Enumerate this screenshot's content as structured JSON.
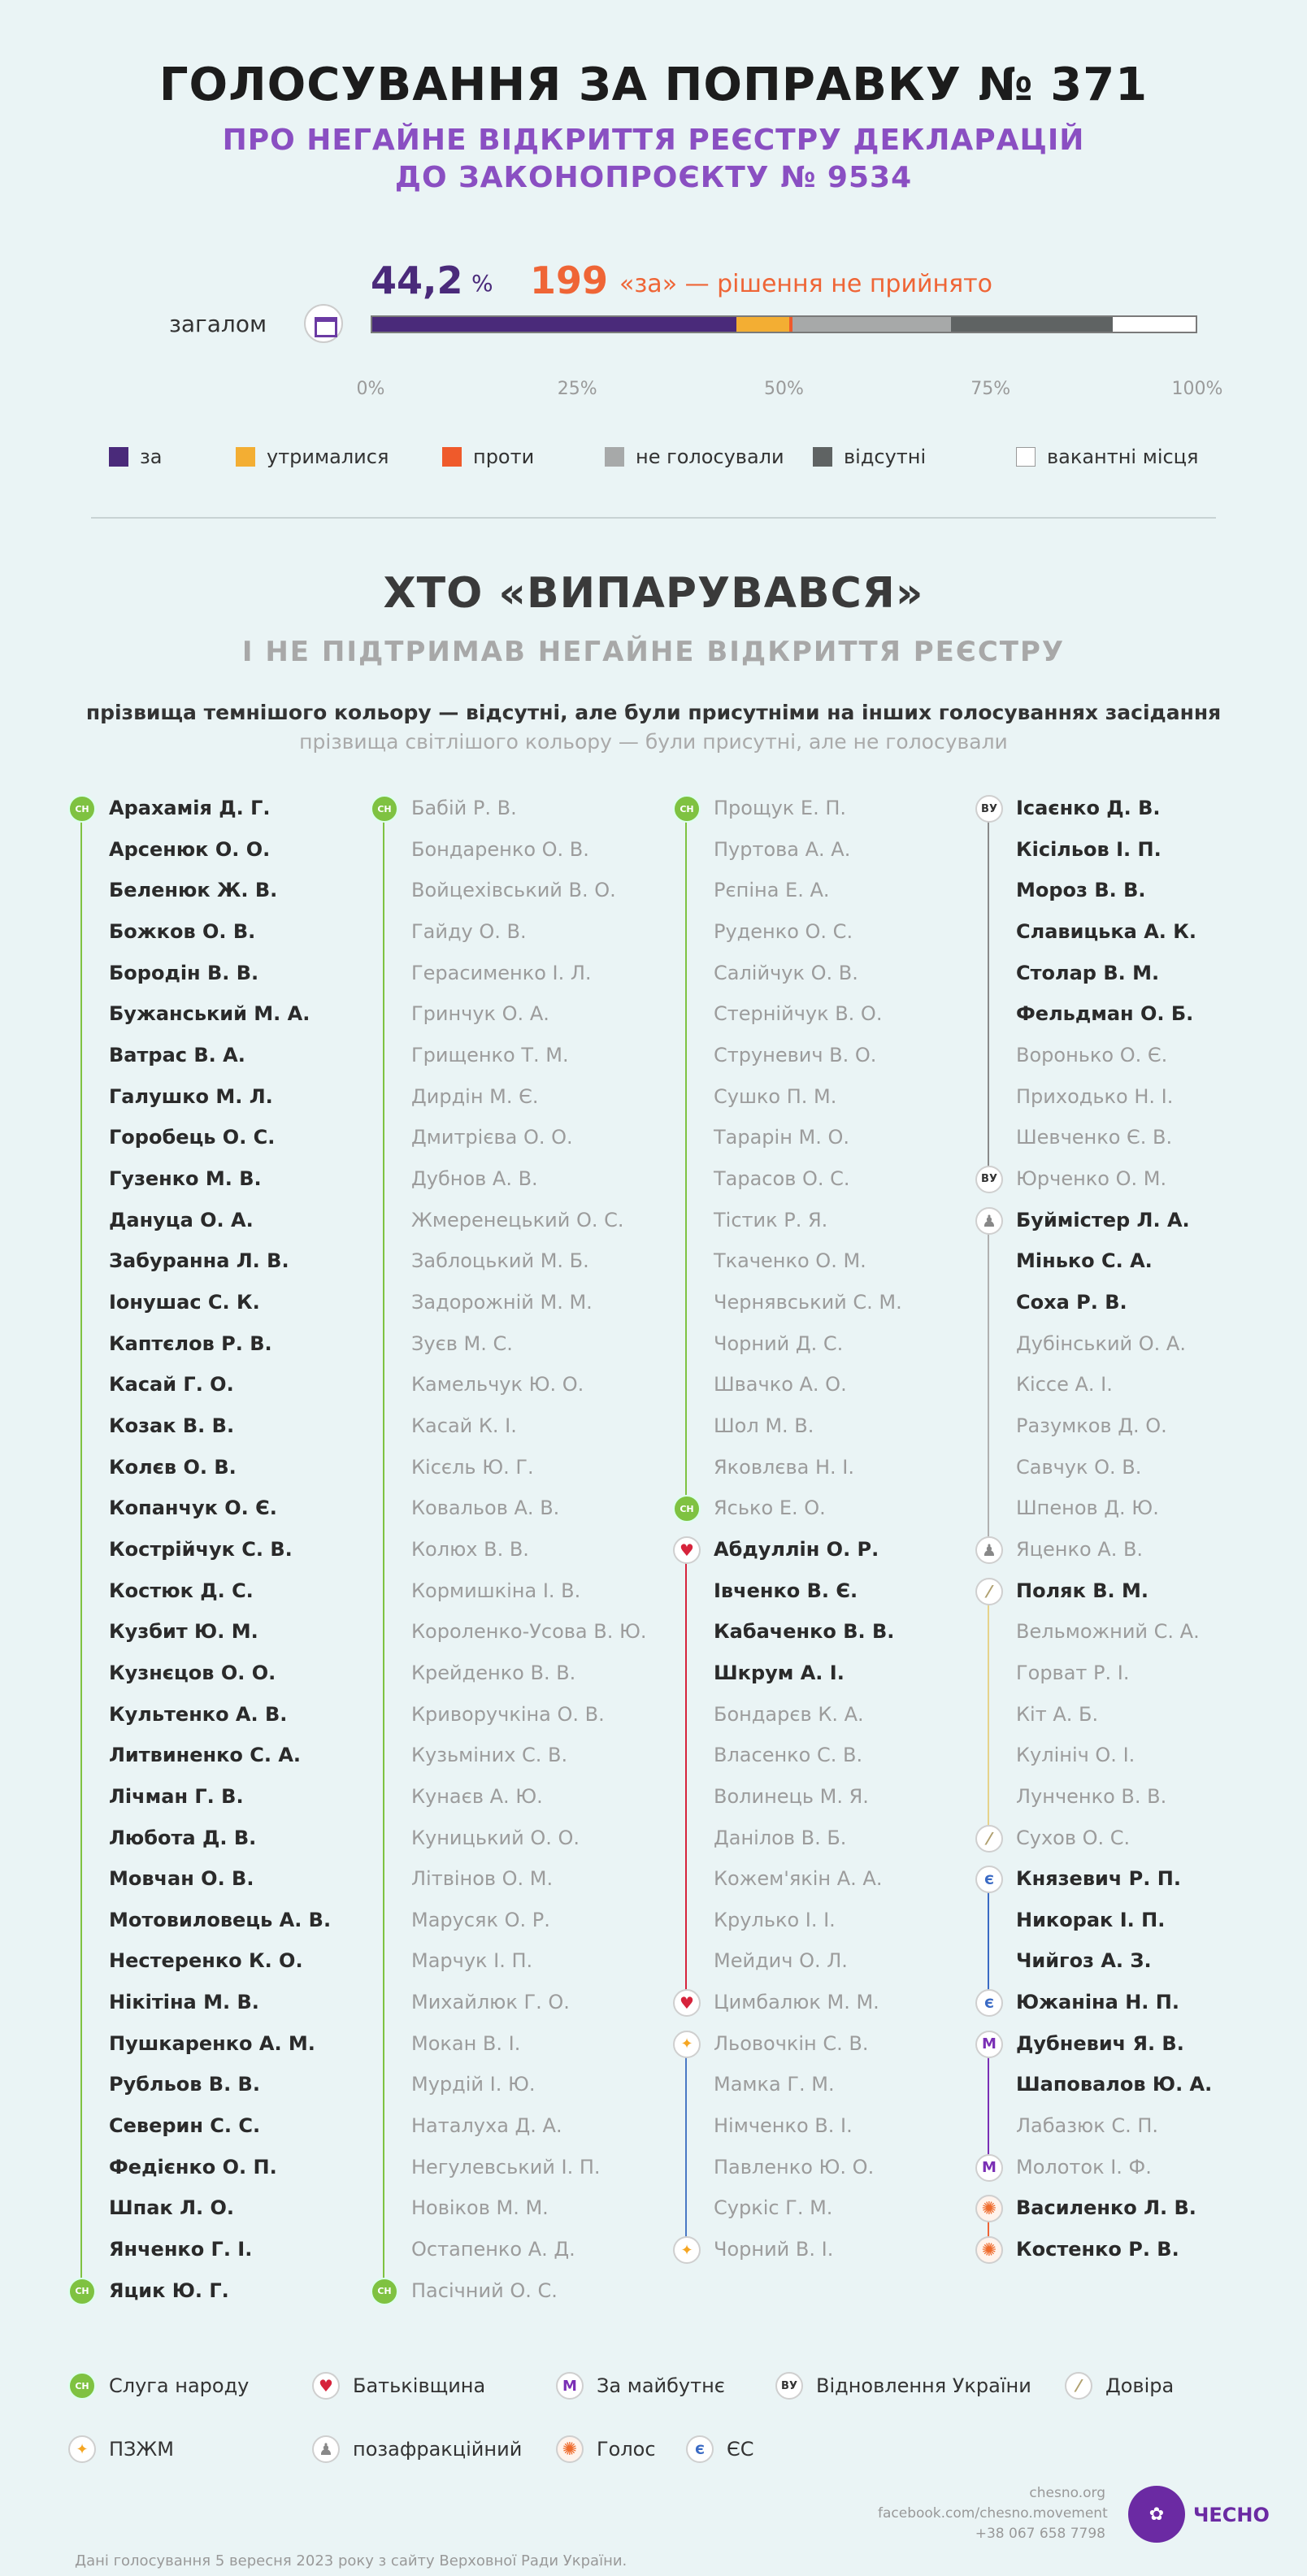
{
  "header": {
    "title": "ГОЛОСУВАННЯ ЗА ПОПРАВКУ № 371",
    "subtitle_line1": "ПРО НЕГАЙНЕ ВІДКРИТТЯ РЕЄСТРУ ДЕКЛАРАЦІЙ",
    "subtitle_line2": "ДО ЗАКОНОПРОЄКТУ № 9534"
  },
  "summary": {
    "percent": "44,2",
    "percent_sign": "%",
    "count": "199",
    "count_text": "«за» — рішення не прийнято",
    "row_label": "загалом"
  },
  "colors": {
    "za": "#4a2a7a",
    "utrym": "#f3ae33",
    "proty": "#ef5a2b",
    "ne_golos": "#a7a9a9",
    "vidsutni": "#5f6363",
    "vakantni": "#ffffff",
    "accent_purple": "#8a4fc2",
    "accent_orange": "#ef6536",
    "sluga_line": "#7fc241",
    "batk_line": "#d6233b",
    "pzzm_line": "#4a78c4",
    "vu_line": "#8a8a8a",
    "poza_line": "#b0b0b0",
    "dov_line": "#e6d28a",
    "es_line": "#3a6ac4",
    "zm_line": "#7a2fb5"
  },
  "chart_data": {
    "type": "bar",
    "orientation": "horizontal-stacked",
    "categories": [
      "загалом"
    ],
    "series": [
      {
        "name": "за",
        "values": [
          44.2
        ]
      },
      {
        "name": "утрималися",
        "values": [
          6.4
        ]
      },
      {
        "name": "проти",
        "values": [
          0.4
        ]
      },
      {
        "name": "не голосували",
        "values": [
          19.3
        ]
      },
      {
        "name": "відсутні",
        "values": [
          19.6
        ]
      },
      {
        "name": "вакантні місця",
        "values": [
          10.1
        ]
      }
    ],
    "xlim": [
      0,
      100
    ],
    "x_ticks": [
      "0%",
      "25%",
      "50%",
      "75%",
      "100%"
    ],
    "legend_placement": "bottom"
  },
  "section": {
    "title": "ХТО «ВИПАРУВАВСЯ»",
    "subtitle": "І НЕ ПІДТРИМАВ НЕГАЙНЕ ВІДКРИТТЯ РЕЄСТРУ",
    "note_dark": "прізвища темнішого кольору — відсутні, але були присутніми на інших голосуваннях засідання",
    "note_light": "прізвища світлішого кольору — були присутні, але не голосували"
  },
  "columns": [
    [
      {
        "n": "Арахамія Д. Г.",
        "s": "dark",
        "p": "sn",
        "b": true
      },
      {
        "n": "Арсенюк О. О.",
        "s": "dark",
        "p": "sn"
      },
      {
        "n": "Беленюк Ж. В.",
        "s": "dark",
        "p": "sn"
      },
      {
        "n": "Божков О. В.",
        "s": "dark",
        "p": "sn"
      },
      {
        "n": "Бородін В. В.",
        "s": "dark",
        "p": "sn"
      },
      {
        "n": "Бужанський М. А.",
        "s": "dark",
        "p": "sn"
      },
      {
        "n": "Ватрас В. А.",
        "s": "dark",
        "p": "sn"
      },
      {
        "n": "Галушко М. Л.",
        "s": "dark",
        "p": "sn"
      },
      {
        "n": "Горобець О. С.",
        "s": "dark",
        "p": "sn"
      },
      {
        "n": "Гузенко М. В.",
        "s": "dark",
        "p": "sn"
      },
      {
        "n": "Дануца О. А.",
        "s": "dark",
        "p": "sn"
      },
      {
        "n": "Забуранна Л. В.",
        "s": "dark",
        "p": "sn"
      },
      {
        "n": "Іонушас С. К.",
        "s": "dark",
        "p": "sn"
      },
      {
        "n": "Каптєлов Р. В.",
        "s": "dark",
        "p": "sn"
      },
      {
        "n": "Касай Г. О.",
        "s": "dark",
        "p": "sn"
      },
      {
        "n": "Козак В. В.",
        "s": "dark",
        "p": "sn"
      },
      {
        "n": "Колєв О. В.",
        "s": "dark",
        "p": "sn"
      },
      {
        "n": "Копанчук О. Є.",
        "s": "dark",
        "p": "sn"
      },
      {
        "n": "Кострійчук С. В.",
        "s": "dark",
        "p": "sn"
      },
      {
        "n": "Костюк Д. С.",
        "s": "dark",
        "p": "sn"
      },
      {
        "n": "Кузбит Ю. М.",
        "s": "dark",
        "p": "sn"
      },
      {
        "n": "Кузнєцов О. О.",
        "s": "dark",
        "p": "sn"
      },
      {
        "n": "Культенко А. В.",
        "s": "dark",
        "p": "sn"
      },
      {
        "n": "Литвиненко С. А.",
        "s": "dark",
        "p": "sn"
      },
      {
        "n": "Лічман Г. В.",
        "s": "dark",
        "p": "sn"
      },
      {
        "n": "Любота Д. В.",
        "s": "dark",
        "p": "sn"
      },
      {
        "n": "Мовчан О. В.",
        "s": "dark",
        "p": "sn"
      },
      {
        "n": "Мотовиловець А. В.",
        "s": "dark",
        "p": "sn"
      },
      {
        "n": "Нестеренко К. О.",
        "s": "dark",
        "p": "sn"
      },
      {
        "n": "Нікітіна М. В.",
        "s": "dark",
        "p": "sn"
      },
      {
        "n": "Пушкаренко А. М.",
        "s": "dark",
        "p": "sn"
      },
      {
        "n": "Рубльов В. В.",
        "s": "dark",
        "p": "sn"
      },
      {
        "n": "Северин С. С.",
        "s": "dark",
        "p": "sn"
      },
      {
        "n": "Федієнко О. П.",
        "s": "dark",
        "p": "sn"
      },
      {
        "n": "Шпак Л. О.",
        "s": "dark",
        "p": "sn"
      },
      {
        "n": "Янченко Г. І.",
        "s": "dark",
        "p": "sn"
      },
      {
        "n": "Яцик Ю. Г.",
        "s": "dark",
        "p": "sn",
        "b": true
      }
    ],
    [
      {
        "n": "Бабій Р. В.",
        "s": "light",
        "p": "sn",
        "b": true
      },
      {
        "n": "Бондаренко О. В.",
        "s": "light",
        "p": "sn"
      },
      {
        "n": "Войцехівський В. О.",
        "s": "light",
        "p": "sn"
      },
      {
        "n": "Гайду О. В.",
        "s": "light",
        "p": "sn"
      },
      {
        "n": "Герасименко І. Л.",
        "s": "light",
        "p": "sn"
      },
      {
        "n": "Гринчук О. А.",
        "s": "light",
        "p": "sn"
      },
      {
        "n": "Грищенко Т. М.",
        "s": "light",
        "p": "sn"
      },
      {
        "n": "Дирдін М. Є.",
        "s": "light",
        "p": "sn"
      },
      {
        "n": "Дмитрієва О. О.",
        "s": "light",
        "p": "sn"
      },
      {
        "n": "Дубнов А. В.",
        "s": "light",
        "p": "sn"
      },
      {
        "n": "Жмеренецький О. С.",
        "s": "light",
        "p": "sn"
      },
      {
        "n": "Заблоцький М. Б.",
        "s": "light",
        "p": "sn"
      },
      {
        "n": "Задорожній М. М.",
        "s": "light",
        "p": "sn"
      },
      {
        "n": "Зуєв М. С.",
        "s": "light",
        "p": "sn"
      },
      {
        "n": "Камельчук Ю. О.",
        "s": "light",
        "p": "sn"
      },
      {
        "n": "Касай К. І.",
        "s": "light",
        "p": "sn"
      },
      {
        "n": "Кісєль Ю. Г.",
        "s": "light",
        "p": "sn"
      },
      {
        "n": "Ковальов А. В.",
        "s": "light",
        "p": "sn"
      },
      {
        "n": "Колюх В. В.",
        "s": "light",
        "p": "sn"
      },
      {
        "n": "Кормишкіна І. В.",
        "s": "light",
        "p": "sn"
      },
      {
        "n": "Короленко-Усова В. Ю.",
        "s": "light",
        "p": "sn"
      },
      {
        "n": "Крейденко В. В.",
        "s": "light",
        "p": "sn"
      },
      {
        "n": "Криворучкіна О. В.",
        "s": "light",
        "p": "sn"
      },
      {
        "n": "Кузьміних С. В.",
        "s": "light",
        "p": "sn"
      },
      {
        "n": "Кунаєв А. Ю.",
        "s": "light",
        "p": "sn"
      },
      {
        "n": "Куницький О. О.",
        "s": "light",
        "p": "sn"
      },
      {
        "n": "Літвінов О. М.",
        "s": "light",
        "p": "sn"
      },
      {
        "n": "Марусяк О. Р.",
        "s": "light",
        "p": "sn"
      },
      {
        "n": "Марчук І. П.",
        "s": "light",
        "p": "sn"
      },
      {
        "n": "Михайлюк Г. О.",
        "s": "light",
        "p": "sn"
      },
      {
        "n": "Мокан В. І.",
        "s": "light",
        "p": "sn"
      },
      {
        "n": "Мурдій І. Ю.",
        "s": "light",
        "p": "sn"
      },
      {
        "n": "Наталуха Д. А.",
        "s": "light",
        "p": "sn"
      },
      {
        "n": "Негулевський І. П.",
        "s": "light",
        "p": "sn"
      },
      {
        "n": "Новіков М. М.",
        "s": "light",
        "p": "sn"
      },
      {
        "n": "Остапенко А. Д.",
        "s": "light",
        "p": "sn"
      },
      {
        "n": "Пасічний О. С.",
        "s": "light",
        "p": "sn",
        "b": true
      }
    ],
    [
      {
        "n": "Прощук Е. П.",
        "s": "light",
        "p": "sn",
        "b": true
      },
      {
        "n": "Пуртова А. А.",
        "s": "light",
        "p": "sn"
      },
      {
        "n": "Рєпіна Е. А.",
        "s": "light",
        "p": "sn"
      },
      {
        "n": "Руденко О. С.",
        "s": "light",
        "p": "sn"
      },
      {
        "n": "Салійчук О. В.",
        "s": "light",
        "p": "sn"
      },
      {
        "n": "Стернійчук В. О.",
        "s": "light",
        "p": "sn"
      },
      {
        "n": "Струневич В. О.",
        "s": "light",
        "p": "sn"
      },
      {
        "n": "Сушко П. М.",
        "s": "light",
        "p": "sn"
      },
      {
        "n": "Тарарін М. О.",
        "s": "light",
        "p": "sn"
      },
      {
        "n": "Тарасов О. С.",
        "s": "light",
        "p": "sn"
      },
      {
        "n": "Тістик Р. Я.",
        "s": "light",
        "p": "sn"
      },
      {
        "n": "Ткаченко О. М.",
        "s": "light",
        "p": "sn"
      },
      {
        "n": "Чернявський С. М.",
        "s": "light",
        "p": "sn"
      },
      {
        "n": "Чорний Д. С.",
        "s": "light",
        "p": "sn"
      },
      {
        "n": "Швачко А. О.",
        "s": "light",
        "p": "sn"
      },
      {
        "n": "Шол М. В.",
        "s": "light",
        "p": "sn"
      },
      {
        "n": "Яковлєва Н. І.",
        "s": "light",
        "p": "sn"
      },
      {
        "n": "Ясько Е. О.",
        "s": "light",
        "p": "sn",
        "b": true
      },
      {
        "n": "Абдуллін О. Р.",
        "s": "dark",
        "p": "bat",
        "b": true
      },
      {
        "n": "Івченко В. Є.",
        "s": "dark",
        "p": "bat"
      },
      {
        "n": "Кабаченко В. В.",
        "s": "dark",
        "p": "bat"
      },
      {
        "n": "Шкрум А. І.",
        "s": "dark",
        "p": "bat"
      },
      {
        "n": "Бондарєв К. А.",
        "s": "light",
        "p": "bat"
      },
      {
        "n": "Власенко С. В.",
        "s": "light",
        "p": "bat"
      },
      {
        "n": "Волинець М. Я.",
        "s": "light",
        "p": "bat"
      },
      {
        "n": "Данілов В. Б.",
        "s": "light",
        "p": "bat"
      },
      {
        "n": "Кожем'якін А. А.",
        "s": "light",
        "p": "bat"
      },
      {
        "n": "Крулько І. І.",
        "s": "light",
        "p": "bat"
      },
      {
        "n": "Мейдич О. Л.",
        "s": "light",
        "p": "bat"
      },
      {
        "n": "Цимбалюк М. М.",
        "s": "light",
        "p": "bat",
        "b": true
      },
      {
        "n": "Льовочкін С. В.",
        "s": "light",
        "p": "pzzm",
        "b": true
      },
      {
        "n": "Мамка Г. М.",
        "s": "light",
        "p": "pzzm"
      },
      {
        "n": "Німченко В. І.",
        "s": "light",
        "p": "pzzm"
      },
      {
        "n": "Павленко Ю. О.",
        "s": "light",
        "p": "pzzm"
      },
      {
        "n": "Суркіс Г. М.",
        "s": "light",
        "p": "pzzm"
      },
      {
        "n": "Чорний В. І.",
        "s": "light",
        "p": "pzzm",
        "b": true
      }
    ],
    [
      {
        "n": "Ісаєнко Д. В.",
        "s": "dark",
        "p": "vu",
        "b": true
      },
      {
        "n": "Кісільов І. П.",
        "s": "dark",
        "p": "vu"
      },
      {
        "n": "Мороз В. В.",
        "s": "dark",
        "p": "vu"
      },
      {
        "n": "Славицька А. К.",
        "s": "dark",
        "p": "vu"
      },
      {
        "n": "Столар В. М.",
        "s": "dark",
        "p": "vu"
      },
      {
        "n": "Фельдман О. Б.",
        "s": "dark",
        "p": "vu"
      },
      {
        "n": "Воронько О. Є.",
        "s": "light",
        "p": "vu"
      },
      {
        "n": "Приходько Н. І.",
        "s": "light",
        "p": "vu"
      },
      {
        "n": "Шевченко Є. В.",
        "s": "light",
        "p": "vu"
      },
      {
        "n": "Юрченко О. М.",
        "s": "light",
        "p": "vu",
        "b": true
      },
      {
        "n": "Буймістер Л. А.",
        "s": "dark",
        "p": "poza",
        "b": true
      },
      {
        "n": "Мінько С. А.",
        "s": "dark",
        "p": "poza"
      },
      {
        "n": "Соха Р. В.",
        "s": "dark",
        "p": "poza"
      },
      {
        "n": "Дубінський О. А.",
        "s": "light",
        "p": "poza"
      },
      {
        "n": "Кіссе А. І.",
        "s": "light",
        "p": "poza"
      },
      {
        "n": "Разумков Д. О.",
        "s": "light",
        "p": "poza"
      },
      {
        "n": "Савчук О. В.",
        "s": "light",
        "p": "poza"
      },
      {
        "n": "Шпенов Д. Ю.",
        "s": "light",
        "p": "poza"
      },
      {
        "n": "Яценко А. В.",
        "s": "light",
        "p": "poza",
        "b": true
      },
      {
        "n": "Поляк В. М.",
        "s": "dark",
        "p": "dov",
        "b": true
      },
      {
        "n": "Вельможний С. А.",
        "s": "light",
        "p": "dov"
      },
      {
        "n": "Горват Р. І.",
        "s": "light",
        "p": "dov"
      },
      {
        "n": "Кіт А. Б.",
        "s": "light",
        "p": "dov"
      },
      {
        "n": "Кулініч О. І.",
        "s": "light",
        "p": "dov"
      },
      {
        "n": "Лунченко В. В.",
        "s": "light",
        "p": "dov"
      },
      {
        "n": "Сухов О. С.",
        "s": "light",
        "p": "dov",
        "b": true
      },
      {
        "n": "Князевич Р. П.",
        "s": "dark",
        "p": "es",
        "b": true
      },
      {
        "n": "Никорак І. П.",
        "s": "dark",
        "p": "es"
      },
      {
        "n": "Чийгоз А. З.",
        "s": "dark",
        "p": "es"
      },
      {
        "n": "Южаніна Н. П.",
        "s": "dark",
        "p": "es",
        "b": true
      },
      {
        "n": "Дубневич Я. В.",
        "s": "dark",
        "p": "zm",
        "b": true
      },
      {
        "n": "Шаповалов Ю. А.",
        "s": "dark",
        "p": "zm"
      },
      {
        "n": "Лабазюк С. П.",
        "s": "light",
        "p": "zm"
      },
      {
        "n": "Молоток І. Ф.",
        "s": "light",
        "p": "zm",
        "b": true
      },
      {
        "n": "Василенко Л. В.",
        "s": "dark",
        "p": "golos",
        "b": true
      },
      {
        "n": "Костенко Р. В.",
        "s": "dark",
        "p": "golos",
        "b": true
      }
    ]
  ],
  "party_badges": {
    "sn": "СН",
    "bat": "♥",
    "zm": "M",
    "vu": "ВУ",
    "dov": "⁄",
    "pzzm": "✦",
    "poza": "♟",
    "golos": "✺",
    "es": "Є"
  },
  "party_legend": [
    {
      "p": "sn",
      "label": "Слуга народу"
    },
    {
      "p": "bat",
      "label": "Батьківщина"
    },
    {
      "p": "zm",
      "label": "За майбутнє"
    },
    {
      "p": "vu",
      "label": "Відновлення України"
    },
    {
      "p": "dov",
      "label": "Довіра"
    },
    {
      "p": "pzzm",
      "label": "ПЗЖМ"
    },
    {
      "p": "poza",
      "label": "позафракційний"
    },
    {
      "p": "golos",
      "label": "Голос"
    },
    {
      "p": "es",
      "label": "ЄС"
    }
  ],
  "footer": {
    "source": "Дані голосування 5 вересня 2023 року з сайту Верховної Ради України.",
    "site": "chesno.org",
    "facebook": "facebook.com/chesno.movement",
    "phone": "+38 067 658 7798",
    "logo_text": "ЧЕСНО"
  }
}
